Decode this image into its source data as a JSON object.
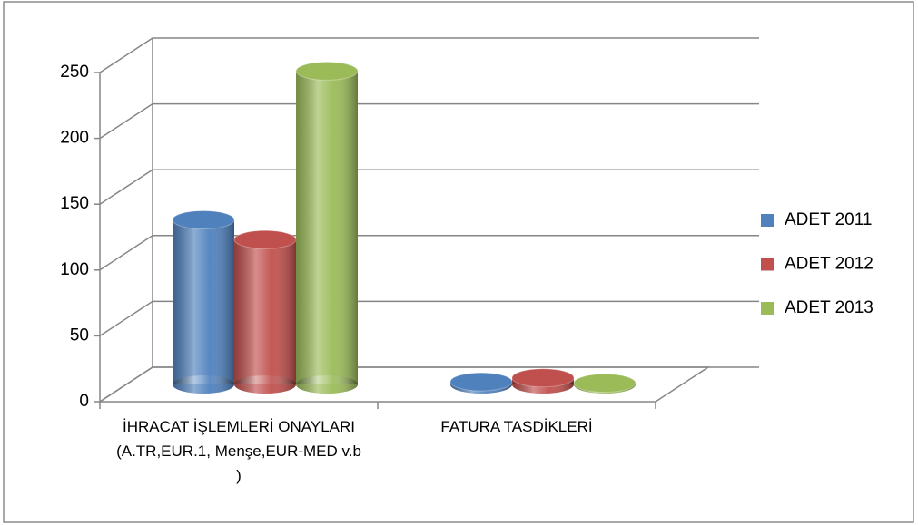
{
  "chart_data": {
    "type": "bar3d",
    "categories": [
      "İHRACAT İŞLEMLERİ ONAYLARI (A.TR,EUR.1, Menşe,EUR-MED v.b )",
      "FATURA TASDİKLERİ"
    ],
    "series": [
      {
        "name": "ADET 2011",
        "color": "#4f81bd",
        "values": [
          125,
          2
        ]
      },
      {
        "name": "ADET 2012",
        "color": "#c0504d",
        "values": [
          110,
          5
        ]
      },
      {
        "name": "ADET 2013",
        "color": "#9bbb59",
        "values": [
          238,
          1
        ]
      }
    ],
    "ylim": [
      0,
      250
    ],
    "yticks": [
      0,
      50,
      100,
      150,
      200,
      250
    ],
    "grid": true,
    "legend": "right"
  }
}
